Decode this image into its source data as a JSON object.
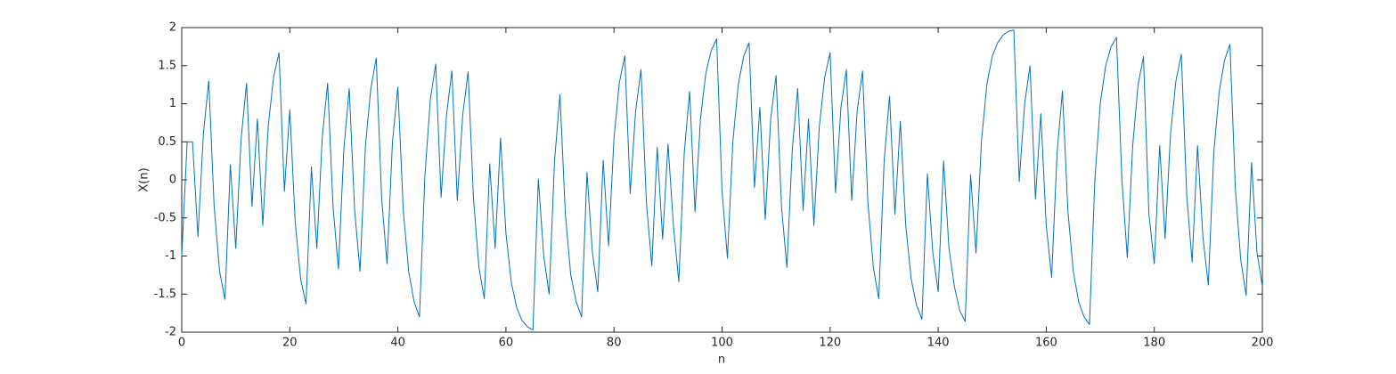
{
  "chart_data": {
    "type": "line",
    "xlabel": "n",
    "ylabel": "X(n)",
    "xlim": [
      0,
      200
    ],
    "ylim": [
      -2,
      2
    ],
    "xticks": [
      0,
      20,
      40,
      60,
      80,
      100,
      120,
      140,
      160,
      180,
      200
    ],
    "yticks": [
      -2,
      -1.5,
      -1,
      -0.5,
      0,
      0.5,
      1,
      1.5,
      2
    ],
    "grid": false,
    "x": [
      0,
      1,
      2,
      3,
      4,
      5,
      6,
      7,
      8,
      9,
      10,
      11,
      12,
      13,
      14,
      15,
      16,
      17,
      18,
      19,
      20,
      21,
      22,
      23,
      24,
      25,
      26,
      27,
      28,
      29,
      30,
      31,
      32,
      33,
      34,
      35,
      36,
      37,
      38,
      39,
      40,
      41,
      42,
      43,
      44,
      45,
      46,
      47,
      48,
      49,
      50,
      51,
      52,
      53,
      54,
      55,
      56,
      57,
      58,
      59,
      60,
      61,
      62,
      63,
      64,
      65,
      66,
      67,
      68,
      69,
      70,
      71,
      72,
      73,
      74,
      75,
      76,
      77,
      78,
      79,
      80,
      81,
      82,
      83,
      84,
      85,
      86,
      87,
      88,
      89,
      90,
      91,
      92,
      93,
      94,
      95,
      96,
      97,
      98,
      99,
      100,
      101,
      102,
      103,
      104,
      105,
      106,
      107,
      108,
      109,
      110,
      111,
      112,
      113,
      114,
      115,
      116,
      117,
      118,
      119,
      120,
      121,
      122,
      123,
      124,
      125,
      126,
      127,
      128,
      129,
      130,
      131,
      132,
      133,
      134,
      135,
      136,
      137,
      138,
      139,
      140,
      141,
      142,
      143,
      144,
      145,
      146,
      147,
      148,
      149,
      150,
      151,
      152,
      153,
      154,
      155,
      156,
      157,
      158,
      159,
      160,
      161,
      162,
      163,
      164,
      165,
      166,
      167,
      168,
      169,
      170,
      171,
      172,
      173,
      174,
      175,
      176,
      177,
      178,
      179,
      180,
      181,
      182,
      183,
      184,
      185,
      186,
      187,
      188,
      189,
      190,
      191,
      192,
      193,
      194,
      195,
      196,
      197,
      198,
      199,
      200
    ],
    "series": [
      {
        "color": "#0072bd",
        "values": [
          -1.0,
          0.5,
          0.5,
          -0.75,
          0.6,
          1.3,
          -0.35,
          -1.2,
          -1.57,
          0.2,
          -0.9,
          0.55,
          1.27,
          -0.35,
          0.8,
          -0.6,
          0.7,
          1.35,
          1.67,
          -0.15,
          0.92,
          -0.55,
          -1.3,
          -1.63,
          0.17,
          -0.9,
          0.55,
          1.27,
          -0.35,
          -1.17,
          0.4,
          1.2,
          -0.4,
          -1.2,
          0.45,
          1.2,
          1.6,
          -0.25,
          -1.1,
          0.5,
          1.22,
          -0.4,
          -1.2,
          -1.6,
          -1.8,
          0.05,
          1.05,
          1.52,
          -0.23,
          0.85,
          1.43,
          -0.27,
          0.85,
          1.42,
          -0.25,
          -1.15,
          -1.56,
          0.21,
          -0.9,
          0.55,
          -0.7,
          -1.35,
          -1.68,
          -1.85,
          -1.93,
          -1.97,
          0.01,
          -1.0,
          -1.5,
          0.25,
          1.12,
          -0.45,
          -1.25,
          -1.6,
          -1.8,
          0.1,
          -0.95,
          -1.47,
          0.26,
          -0.87,
          0.55,
          1.28,
          1.63,
          -0.18,
          0.9,
          1.45,
          -0.3,
          -1.13,
          0.43,
          -0.78,
          0.47,
          -0.6,
          -1.34,
          0.35,
          1.16,
          -0.42,
          0.8,
          1.4,
          1.7,
          1.85,
          -0.15,
          -1.03,
          0.5,
          1.25,
          1.62,
          1.8,
          -0.1,
          0.95,
          -0.52,
          0.8,
          1.37,
          -0.35,
          -1.15,
          0.4,
          1.2,
          -0.4,
          0.8,
          -0.6,
          0.7,
          1.35,
          1.67,
          -0.17,
          0.95,
          1.45,
          -0.27,
          0.9,
          1.43,
          -0.3,
          -1.15,
          -1.56,
          0.25,
          1.1,
          -0.45,
          0.77,
          -0.6,
          -1.3,
          -1.65,
          -1.83,
          0.08,
          -0.95,
          -1.47,
          0.25,
          -0.9,
          -1.4,
          -1.72,
          -1.86,
          0.07,
          -0.96,
          0.5,
          1.25,
          1.62,
          1.8,
          1.9,
          1.95,
          1.97,
          -0.02,
          1.0,
          1.5,
          -0.25,
          0.87,
          -0.6,
          -1.28,
          0.35,
          1.17,
          -0.4,
          -1.2,
          -1.6,
          -1.8,
          -1.9,
          0.0,
          1.0,
          1.5,
          1.75,
          1.87,
          0.0,
          -1.02,
          0.45,
          1.25,
          1.62,
          -0.45,
          -1.1,
          0.45,
          -0.77,
          0.6,
          1.3,
          1.65,
          -0.2,
          -1.08,
          0.45,
          -0.75,
          -1.38,
          0.35,
          1.15,
          1.57,
          1.78,
          -0.12,
          -1.05,
          -1.52,
          0.23,
          -0.95,
          -1.4
        ]
      }
    ]
  }
}
